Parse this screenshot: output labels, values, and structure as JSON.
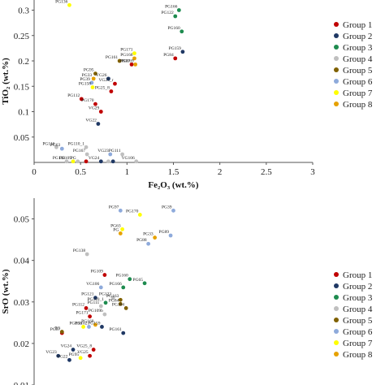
{
  "groups": [
    {
      "name": "Group 1",
      "color": "#c00000"
    },
    {
      "name": "Group 2",
      "color": "#1f3864"
    },
    {
      "name": "Group 3",
      "color": "#1e8b4f"
    },
    {
      "name": "Group 4",
      "color": "#bfbfbf"
    },
    {
      "name": "Group 5",
      "color": "#7f6000"
    },
    {
      "name": "Group 6",
      "color": "#8eaadb"
    },
    {
      "name": "Group 7",
      "color": "#ffff00"
    },
    {
      "name": "Group 8",
      "color": "#e6a100"
    }
  ],
  "chart_data": [
    {
      "type": "scatter",
      "xlabel": "Fe₂O₃ (wt.%)",
      "ylabel": "TiO₂ (wt.%)",
      "xlim": [
        0,
        3
      ],
      "ylim": [
        0,
        0.32
      ],
      "xticks": [
        "0",
        "0.5",
        "1",
        "1.5",
        "2",
        "2.5",
        "3"
      ],
      "yticks": [
        "0.05",
        "0.1",
        "0.15",
        "0.2",
        "0.25",
        "0.3"
      ],
      "legend": "right",
      "points": [
        {
          "label": "PG136",
          "x": 0.38,
          "y": 0.31,
          "group": 7
        },
        {
          "label": "PG89",
          "x": 0.82,
          "y": 0.328,
          "group": 6
        },
        {
          "label": "PG65",
          "x": 1.88,
          "y": 0.335,
          "group": 3
        },
        {
          "label": "PG166",
          "x": 1.56,
          "y": 0.3,
          "group": 3
        },
        {
          "label": "PG122",
          "x": 1.52,
          "y": 0.288,
          "group": 3
        },
        {
          "label": "PG160",
          "x": 1.59,
          "y": 0.258,
          "group": 3
        },
        {
          "label": "PG159",
          "x": 1.6,
          "y": 0.218,
          "group": 2
        },
        {
          "label": "PG84",
          "x": 1.52,
          "y": 0.205,
          "group": 1
        },
        {
          "label": "PG171",
          "x": 1.08,
          "y": 0.215,
          "group": 7
        },
        {
          "label": "PG168",
          "x": 1.08,
          "y": 0.205,
          "group": 8
        },
        {
          "label": "PG161",
          "x": 0.92,
          "y": 0.2,
          "group": 5
        },
        {
          "label": "PG87",
          "x": 1.05,
          "y": 0.193,
          "group": 1
        },
        {
          "label": "PG169",
          "x": 1.09,
          "y": 0.193,
          "group": 8
        },
        {
          "label": "PG95",
          "x": 0.66,
          "y": 0.175,
          "group": 5
        },
        {
          "label": "PG33",
          "x": 0.64,
          "y": 0.165,
          "group": 8
        },
        {
          "label": "VG26",
          "x": 0.8,
          "y": 0.165,
          "group": 2
        },
        {
          "label": "PG39",
          "x": 0.62,
          "y": 0.157,
          "group": 6
        },
        {
          "label": "VG25_r",
          "x": 0.87,
          "y": 0.155,
          "group": 1
        },
        {
          "label": "PG158",
          "x": 0.63,
          "y": 0.148,
          "group": 7
        },
        {
          "label": "PG25_8",
          "x": 0.83,
          "y": 0.14,
          "group": 1
        },
        {
          "label": "PG112",
          "x": 0.51,
          "y": 0.125,
          "group": 1
        },
        {
          "label": "PG170",
          "x": 0.66,
          "y": 0.115,
          "group": 1
        },
        {
          "label": "VG29",
          "x": 0.72,
          "y": 0.1,
          "group": 1
        },
        {
          "label": "VG22",
          "x": 0.69,
          "y": 0.076,
          "group": 2
        },
        {
          "label": "PG116",
          "x": 0.24,
          "y": 0.03,
          "group": 4
        },
        {
          "label": "PG63",
          "x": 0.3,
          "y": 0.027,
          "group": 6
        },
        {
          "label": "PG110_1",
          "x": 0.56,
          "y": 0.03,
          "group": 4
        },
        {
          "label": "PG167",
          "x": 0.57,
          "y": 0.016,
          "group": 4
        },
        {
          "label": "VG23",
          "x": 0.82,
          "y": 0.016,
          "group": 6
        },
        {
          "label": "PG111",
          "x": 0.95,
          "y": 0.016,
          "group": 4
        },
        {
          "label": "PG138",
          "x": 0.35,
          "y": 0.002,
          "group": 4
        },
        {
          "label": "PG109",
          "x": 0.42,
          "y": 0.002,
          "group": 7
        },
        {
          "label": "PG",
          "x": 0.47,
          "y": 0.002,
          "group": 4
        },
        {
          "label": "",
          "x": 0.56,
          "y": 0.002,
          "group": 1
        },
        {
          "label": "VG24",
          "x": 0.72,
          "y": 0.002,
          "group": 2
        },
        {
          "label": "",
          "x": 0.8,
          "y": 0.002,
          "group": 4
        },
        {
          "label": "",
          "x": 0.85,
          "y": 0.002,
          "group": 2
        },
        {
          "label": "VG106",
          "x": 1.1,
          "y": 0.002,
          "group": 4
        }
      ]
    },
    {
      "type": "scatter",
      "xlabel": "",
      "ylabel": "SrO (wt.%)",
      "ylim": [
        0.01,
        0.055
      ],
      "yticks": [
        "0.01",
        "0.02",
        "0.03",
        "0.04",
        "0.05"
      ],
      "legend": "right",
      "points": [
        {
          "label": "PG97",
          "x": 0.93,
          "y": 0.052,
          "group": 6
        },
        {
          "label": "PG170",
          "x": 1.14,
          "y": 0.051,
          "group": 7
        },
        {
          "label": "PG39",
          "x": 1.5,
          "y": 0.052,
          "group": 6
        },
        {
          "label": "PG63",
          "x": 0.95,
          "y": 0.0475,
          "group": 7
        },
        {
          "label": "PG33",
          "x": 1.3,
          "y": 0.0455,
          "group": 8
        },
        {
          "label": "PG89",
          "x": 1.47,
          "y": 0.046,
          "group": 6
        },
        {
          "label": "PG88",
          "x": 1.23,
          "y": 0.044,
          "group": 6
        },
        {
          "label": "PG",
          "x": 0.93,
          "y": 0.0465,
          "group": 8
        },
        {
          "label": "PG138",
          "x": 0.57,
          "y": 0.0415,
          "group": 4
        },
        {
          "label": "PG109",
          "x": 0.76,
          "y": 0.0365,
          "group": 1
        },
        {
          "label": "PG160",
          "x": 1.03,
          "y": 0.0355,
          "group": 3
        },
        {
          "label": "PG65",
          "x": 1.19,
          "y": 0.0345,
          "group": 3
        },
        {
          "label": "PG166",
          "x": 0.96,
          "y": 0.0335,
          "group": 3
        },
        {
          "label": "VG106",
          "x": 0.72,
          "y": 0.0335,
          "group": 6
        },
        {
          "label": "PG121",
          "x": 0.66,
          "y": 0.031,
          "group": 2
        },
        {
          "label": "PG122",
          "x": 0.85,
          "y": 0.031,
          "group": 4
        },
        {
          "label": "PG163",
          "x": 0.93,
          "y": 0.0305,
          "group": 5
        },
        {
          "label": "PG111",
          "x": 0.72,
          "y": 0.029,
          "group": 4
        },
        {
          "label": "PG110_1",
          "x": 0.77,
          "y": 0.0298,
          "group": 3
        },
        {
          "label": "PG112",
          "x": 0.56,
          "y": 0.0285,
          "group": 1
        },
        {
          "label": "PG84",
          "x": 0.93,
          "y": 0.0295,
          "group": 5
        },
        {
          "label": "PG164",
          "x": 0.99,
          "y": 0.0285,
          "group": 5
        },
        {
          "label": "PG171",
          "x": 0.6,
          "y": 0.0265,
          "group": 1
        },
        {
          "label": "PG109b",
          "x": 0.76,
          "y": 0.027,
          "group": 4
        },
        {
          "label": "PG136",
          "x": 0.53,
          "y": 0.024,
          "group": 7
        },
        {
          "label": "PG162",
          "x": 0.59,
          "y": 0.024,
          "group": 6
        },
        {
          "label": "PG168",
          "x": 0.66,
          "y": 0.0245,
          "group": 8
        },
        {
          "label": "PG159",
          "x": 0.73,
          "y": 0.024,
          "group": 2
        },
        {
          "label": "PG87",
          "x": 0.3,
          "y": 0.0225,
          "group": 1
        },
        {
          "label": "PG161",
          "x": 0.96,
          "y": 0.0225,
          "group": 2
        },
        {
          "label": "PG",
          "x": 0.3,
          "y": 0.0228,
          "group": 5
        },
        {
          "label": "VG24",
          "x": 0.42,
          "y": 0.0185,
          "group": 2
        },
        {
          "label": "VG25_8",
          "x": 0.64,
          "y": 0.0185,
          "group": 1
        },
        {
          "label": "VG23",
          "x": 0.26,
          "y": 0.017,
          "group": 2
        },
        {
          "label": "VG22",
          "x": 0.38,
          "y": 0.016,
          "group": 2
        },
        {
          "label": "PG95",
          "x": 0.5,
          "y": 0.0165,
          "group": 7
        },
        {
          "label": "VG25",
          "x": 0.6,
          "y": 0.017,
          "group": 1
        }
      ]
    }
  ]
}
